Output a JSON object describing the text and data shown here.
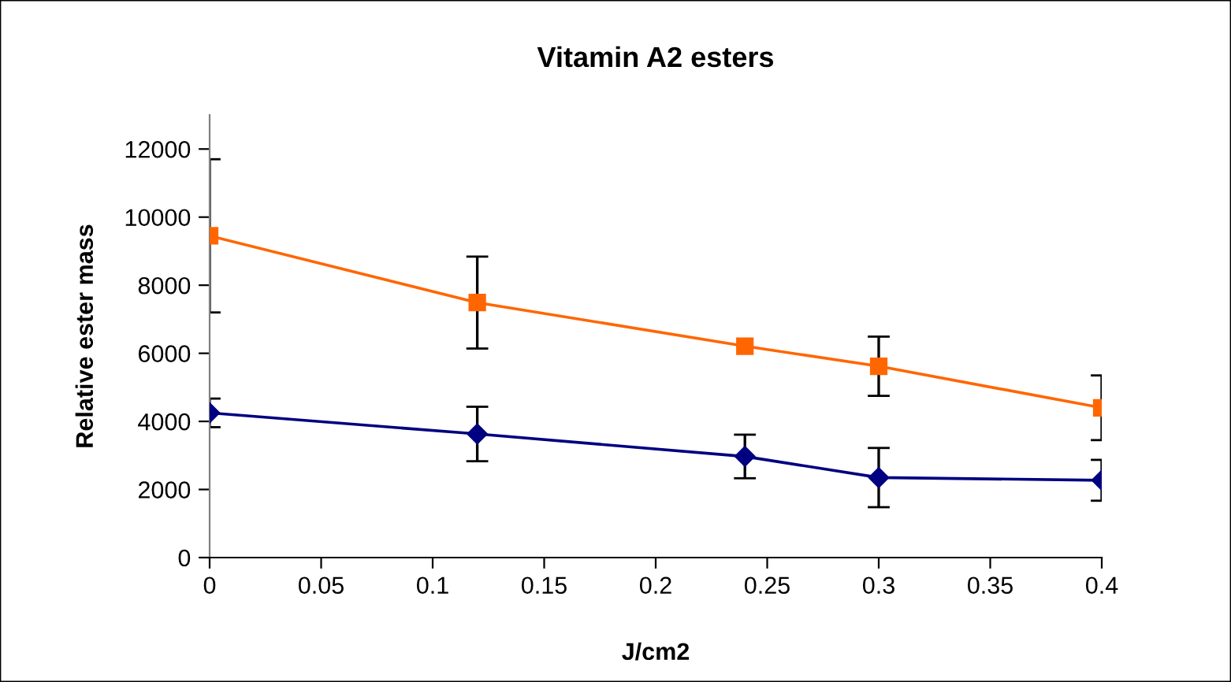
{
  "chart_data": {
    "type": "line",
    "title": "Vitamin A2 esters",
    "xlabel": "J/cm2",
    "ylabel": "Relative ester mass",
    "x": [
      0,
      0.12,
      0.24,
      0.3,
      0.4
    ],
    "series": [
      {
        "color": "#000080",
        "marker": "diamond",
        "values": [
          4250,
          3630,
          2970,
          2350,
          2270
        ],
        "errors": [
          420,
          800,
          640,
          870,
          600
        ]
      },
      {
        "color": "#ff6600",
        "marker": "square",
        "values": [
          9450,
          7490,
          6210,
          5620,
          4400
        ],
        "errors": [
          2250,
          1350,
          null,
          870,
          950
        ]
      }
    ],
    "xlim": [
      0,
      0.4
    ],
    "xticks": [
      0,
      0.05,
      0.1,
      0.15,
      0.2,
      0.25,
      0.3,
      0.35,
      0.4
    ],
    "ylim": [
      0,
      13000
    ],
    "yticks": [
      0,
      2000,
      4000,
      6000,
      8000,
      10000,
      12000
    ],
    "grid": false,
    "line_style": "solid"
  }
}
